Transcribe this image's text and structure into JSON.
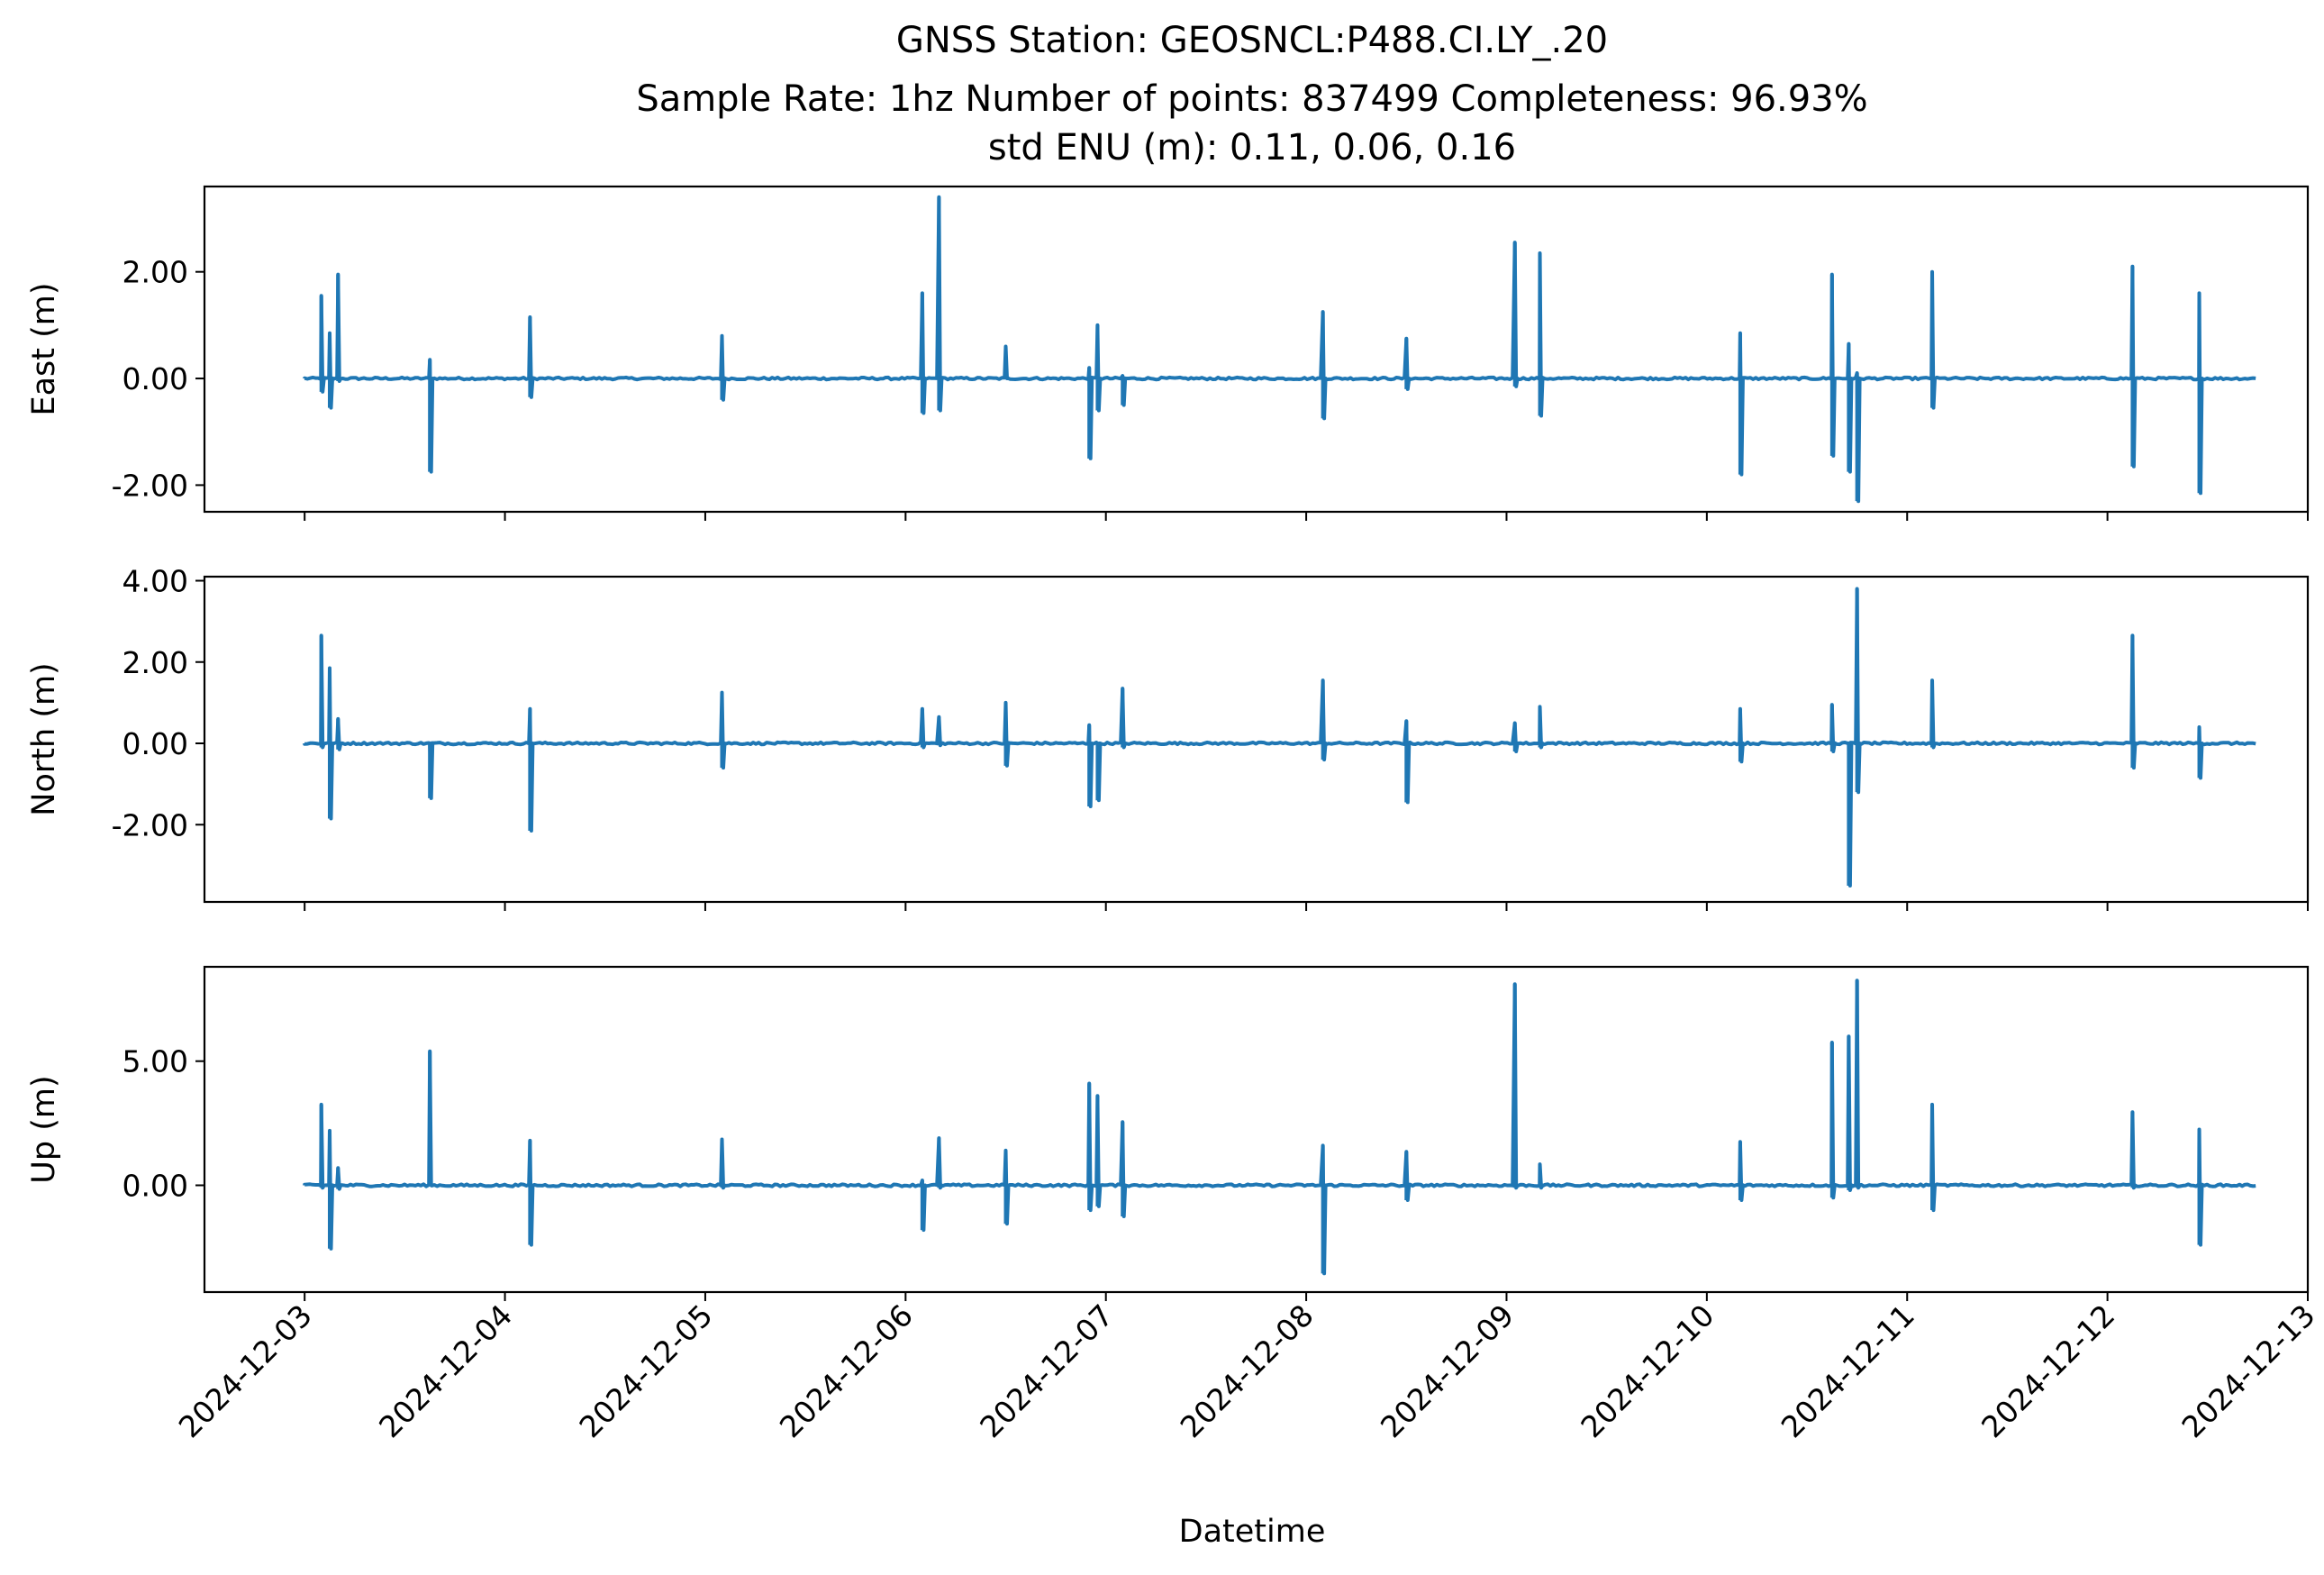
{
  "figure": {
    "title_lines": [
      "GNSS Station: GEOSNCL:P488.CI.LY_.20",
      "Sample Rate: 1hz   Number of points: 837499    Completeness:  96.93%",
      "std ENU (m):  0.11, 0.06, 0.16"
    ],
    "xlabel": "Datetime",
    "x_ticks": [
      "2024-12-03",
      "2024-12-04",
      "2024-12-05",
      "2024-12-06",
      "2024-12-07",
      "2024-12-08",
      "2024-12-09",
      "2024-12-10",
      "2024-12-11",
      "2024-12-12",
      "2024-12-13"
    ],
    "line_color": "#1f77b4"
  },
  "chart_data": [
    {
      "type": "line",
      "title": "",
      "xlabel": "",
      "ylabel": "East (m)",
      "x_range": [
        "2024-12-02T12:00",
        "2024-12-13T00:00"
      ],
      "ylim": [
        -2.5,
        3.6
      ],
      "y_ticks": [
        "-2.00",
        "0.00",
        "2.00"
      ],
      "y_tick_values": [
        -2,
        0,
        2
      ],
      "grid": false,
      "data_extent": [
        "2024-12-03T00:00",
        "2024-12-12T18:00"
      ],
      "spikes": [
        {
          "t": "2024-12-03T02:00",
          "max": 1.55,
          "min": -0.25
        },
        {
          "t": "2024-12-03T03:00",
          "max": 0.85,
          "min": -0.55
        },
        {
          "t": "2024-12-03T04:00",
          "max": 1.95,
          "min": -0.05
        },
        {
          "t": "2024-12-03T15:00",
          "max": 0.35,
          "min": -1.75
        },
        {
          "t": "2024-12-04T03:00",
          "max": 1.15,
          "min": -0.35
        },
        {
          "t": "2024-12-05T02:00",
          "max": 0.8,
          "min": -0.4
        },
        {
          "t": "2024-12-06T02:00",
          "max": 1.6,
          "min": -0.65
        },
        {
          "t": "2024-12-06T04:00",
          "max": 3.4,
          "min": -0.6
        },
        {
          "t": "2024-12-06T12:00",
          "max": 0.6,
          "min": 0.0
        },
        {
          "t": "2024-12-06T22:00",
          "max": 0.2,
          "min": -1.5
        },
        {
          "t": "2024-12-06T23:00",
          "max": 1.0,
          "min": -0.6
        },
        {
          "t": "2024-12-07T02:00",
          "max": 0.05,
          "min": -0.5
        },
        {
          "t": "2024-12-08T02:00",
          "max": 1.25,
          "min": -0.75
        },
        {
          "t": "2024-12-08T12:00",
          "max": 0.75,
          "min": -0.2
        },
        {
          "t": "2024-12-09T01:00",
          "max": 2.55,
          "min": -0.15
        },
        {
          "t": "2024-12-09T04:00",
          "max": 2.35,
          "min": -0.7
        },
        {
          "t": "2024-12-10T04:00",
          "max": 0.85,
          "min": -1.8
        },
        {
          "t": "2024-12-10T15:00",
          "max": 1.95,
          "min": -1.45
        },
        {
          "t": "2024-12-10T17:00",
          "max": 0.65,
          "min": -1.75
        },
        {
          "t": "2024-12-10T18:00",
          "max": 0.1,
          "min": -2.3
        },
        {
          "t": "2024-12-11T03:00",
          "max": 2.0,
          "min": -0.55
        },
        {
          "t": "2024-12-12T03:00",
          "max": 2.1,
          "min": -1.65
        },
        {
          "t": "2024-12-12T11:00",
          "max": 1.6,
          "min": -2.15
        }
      ]
    },
    {
      "type": "line",
      "title": "",
      "xlabel": "",
      "ylabel": "North (m)",
      "x_range": [
        "2024-12-02T12:00",
        "2024-12-13T00:00"
      ],
      "ylim": [
        -3.9,
        4.1
      ],
      "y_ticks": [
        "-2.00",
        "0.00",
        "2.00",
        "4.00"
      ],
      "y_tick_values": [
        -2,
        0,
        2,
        4
      ],
      "grid": false,
      "data_extent": [
        "2024-12-03T00:00",
        "2024-12-12T18:00"
      ],
      "spikes": [
        {
          "t": "2024-12-03T02:00",
          "max": 2.65,
          "min": -0.1
        },
        {
          "t": "2024-12-03T03:00",
          "max": 1.85,
          "min": -1.85
        },
        {
          "t": "2024-12-03T04:00",
          "max": 0.6,
          "min": -0.15
        },
        {
          "t": "2024-12-03T15:00",
          "max": 0.0,
          "min": -1.35
        },
        {
          "t": "2024-12-04T03:00",
          "max": 0.85,
          "min": -2.15
        },
        {
          "t": "2024-12-05T02:00",
          "max": 1.25,
          "min": -0.6
        },
        {
          "t": "2024-12-06T02:00",
          "max": 0.85,
          "min": -0.1
        },
        {
          "t": "2024-12-06T04:00",
          "max": 0.65,
          "min": -0.05
        },
        {
          "t": "2024-12-06T12:00",
          "max": 1.0,
          "min": -0.55
        },
        {
          "t": "2024-12-06T22:00",
          "max": 0.45,
          "min": -1.55
        },
        {
          "t": "2024-12-06T23:00",
          "max": 0.0,
          "min": -1.4
        },
        {
          "t": "2024-12-07T02:00",
          "max": 1.35,
          "min": -0.1
        },
        {
          "t": "2024-12-08T02:00",
          "max": 1.55,
          "min": -0.4
        },
        {
          "t": "2024-12-08T12:00",
          "max": 0.55,
          "min": -1.45
        },
        {
          "t": "2024-12-09T01:00",
          "max": 0.5,
          "min": -0.2
        },
        {
          "t": "2024-12-09T04:00",
          "max": 0.9,
          "min": -0.1
        },
        {
          "t": "2024-12-10T04:00",
          "max": 0.85,
          "min": -0.45
        },
        {
          "t": "2024-12-10T15:00",
          "max": 0.95,
          "min": -0.2
        },
        {
          "t": "2024-12-10T17:00",
          "max": 0.0,
          "min": -3.5
        },
        {
          "t": "2024-12-10T18:00",
          "max": 3.8,
          "min": -1.2
        },
        {
          "t": "2024-12-11T03:00",
          "max": 1.55,
          "min": -0.1
        },
        {
          "t": "2024-12-12T03:00",
          "max": 2.65,
          "min": -0.6
        },
        {
          "t": "2024-12-12T11:00",
          "max": 0.4,
          "min": -0.85
        }
      ]
    },
    {
      "type": "line",
      "title": "",
      "xlabel": "Datetime",
      "ylabel": "Up (m)",
      "x_range": [
        "2024-12-02T12:00",
        "2024-12-13T00:00"
      ],
      "ylim": [
        -4.3,
        8.8
      ],
      "y_ticks": [
        "0.00",
        "5.00"
      ],
      "y_tick_values": [
        0,
        5
      ],
      "grid": false,
      "data_extent": [
        "2024-12-03T00:00",
        "2024-12-12T18:00"
      ],
      "spikes": [
        {
          "t": "2024-12-03T02:00",
          "max": 3.25,
          "min": -0.1
        },
        {
          "t": "2024-12-03T03:00",
          "max": 2.2,
          "min": -2.55
        },
        {
          "t": "2024-12-03T04:00",
          "max": 0.7,
          "min": -0.15
        },
        {
          "t": "2024-12-03T15:00",
          "max": 5.4,
          "min": 0.0
        },
        {
          "t": "2024-12-04T03:00",
          "max": 1.8,
          "min": -2.4
        },
        {
          "t": "2024-12-05T02:00",
          "max": 1.85,
          "min": -0.1
        },
        {
          "t": "2024-12-06T02:00",
          "max": 0.2,
          "min": -1.8
        },
        {
          "t": "2024-12-06T04:00",
          "max": 1.9,
          "min": -0.1
        },
        {
          "t": "2024-12-06T12:00",
          "max": 1.4,
          "min": -1.55
        },
        {
          "t": "2024-12-06T22:00",
          "max": 4.1,
          "min": -1.0
        },
        {
          "t": "2024-12-06T23:00",
          "max": 3.6,
          "min": -0.85
        },
        {
          "t": "2024-12-07T02:00",
          "max": 2.55,
          "min": -1.25
        },
        {
          "t": "2024-12-08T02:00",
          "max": 1.6,
          "min": -3.55
        },
        {
          "t": "2024-12-08T12:00",
          "max": 1.35,
          "min": -0.6
        },
        {
          "t": "2024-12-09T01:00",
          "max": 8.1,
          "min": -0.1
        },
        {
          "t": "2024-12-09T04:00",
          "max": 0.85,
          "min": -0.1
        },
        {
          "t": "2024-12-10T04:00",
          "max": 1.75,
          "min": -0.6
        },
        {
          "t": "2024-12-10T15:00",
          "max": 5.75,
          "min": -0.5
        },
        {
          "t": "2024-12-10T17:00",
          "max": 6.0,
          "min": -0.2
        },
        {
          "t": "2024-12-10T18:00",
          "max": 8.25,
          "min": -0.1
        },
        {
          "t": "2024-12-11T03:00",
          "max": 3.25,
          "min": -1.0
        },
        {
          "t": "2024-12-12T03:00",
          "max": 2.95,
          "min": -0.1
        },
        {
          "t": "2024-12-12T11:00",
          "max": 2.25,
          "min": -2.4
        }
      ]
    }
  ]
}
